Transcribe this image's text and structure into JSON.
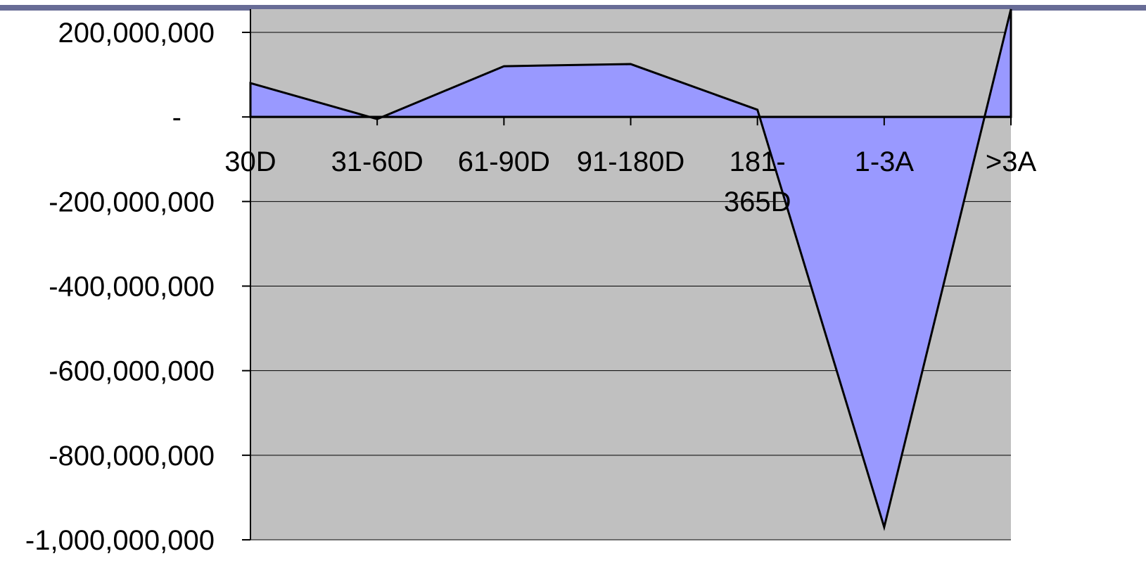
{
  "colors": {
    "top_bar": "#686c96",
    "plot_background": "#c0c0c0",
    "area_fill": "#9999ff",
    "area_stroke": "#000000",
    "gridline": "#000000"
  },
  "chart_data": {
    "type": "area",
    "categories": [
      "30D",
      "31-60D",
      "61-90D",
      "91-180D",
      "181-365D",
      "1-3A",
      ">3A"
    ],
    "category_lines": [
      [
        "30D"
      ],
      [
        "31-60D"
      ],
      [
        "61-90D"
      ],
      [
        "91-180D"
      ],
      [
        "181-",
        "365D"
      ],
      [
        "1-3A"
      ],
      [
        ">3A"
      ]
    ],
    "series": [
      {
        "values": [
          80000000,
          -5000000,
          120000000,
          125000000,
          17000000,
          -970000000,
          255000000
        ]
      }
    ],
    "ylim": [
      -1000000000,
      200000000
    ],
    "yticks": [
      200000000,
      0,
      -200000000,
      -400000000,
      -600000000,
      -800000000,
      -1000000000
    ],
    "ytick_labels": [
      "200,000,000",
      "-",
      "-200,000,000",
      "-400,000,000",
      "-600,000,000",
      "-800,000,000",
      "-1,000,000,000"
    ],
    "grid": true,
    "title": "",
    "xlabel": "",
    "ylabel": ""
  }
}
